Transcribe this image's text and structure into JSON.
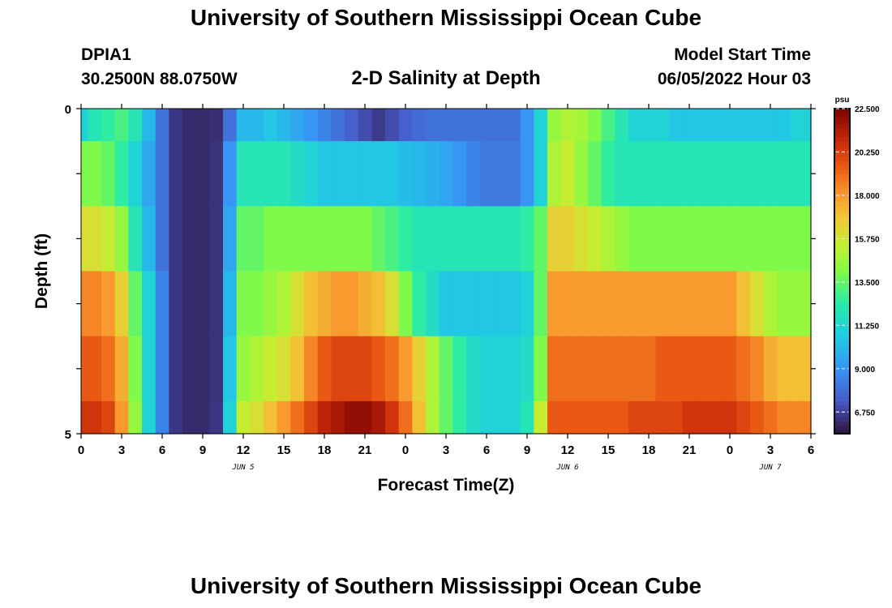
{
  "header": {
    "title": "University of Southern Mississippi Ocean Cube",
    "station_id": "DPIA1",
    "coords": "30.2500N  88.0750W",
    "subtitle": "2-D Salinity at Depth",
    "start_label": "Model Start Time",
    "start_value": "06/05/2022 Hour 03"
  },
  "footer": {
    "title": "University of Southern Mississippi Ocean Cube"
  },
  "chart_data": {
    "type": "heatmap",
    "title": "2-D Salinity at Depth",
    "xlabel": "Forecast Time(Z)",
    "ylabel": "Depth (ft)",
    "x_tick_labels": [
      "0",
      "3",
      "6",
      "9",
      "12",
      "15",
      "18",
      "21",
      "0",
      "3",
      "6",
      "9",
      "12",
      "15",
      "18",
      "21",
      "0",
      "3",
      "6"
    ],
    "date_labels": [
      {
        "label": "JUN 5",
        "hour": 12
      },
      {
        "label": "JUN 6",
        "hour": 36
      },
      {
        "label": "JUN 7",
        "hour": 51
      }
    ],
    "y_tick_labels": [
      "0",
      "5"
    ],
    "xlim": [
      0,
      54
    ],
    "ylim": [
      0,
      5
    ],
    "depth_bands_ft": [
      0.5,
      1.5,
      2.5,
      3.5,
      4.5,
      5.0
    ],
    "colorbar": {
      "unit": "psu",
      "min": 5.625,
      "max": 22.5,
      "tick_labels": [
        "22.500",
        "20.250",
        "18.000",
        "15.750",
        "13.500",
        "11.250",
        "9.000",
        "6.750"
      ],
      "tick_values": [
        22.5,
        20.25,
        18.0,
        15.75,
        13.5,
        11.25,
        9.0,
        6.75
      ]
    },
    "hours": [
      0,
      1,
      2,
      3,
      4,
      5,
      6,
      7,
      8,
      9,
      10,
      11,
      12,
      13,
      14,
      15,
      16,
      17,
      18,
      19,
      20,
      21,
      22,
      23,
      24,
      25,
      26,
      27,
      28,
      29,
      30,
      31,
      32,
      33,
      34,
      35,
      36,
      37,
      38,
      39,
      40,
      41,
      42,
      43,
      44,
      45,
      46,
      47,
      48,
      49,
      50,
      51,
      52,
      53,
      54
    ],
    "salinity_by_band": [
      {
        "band": "0",
        "values": [
          11,
          12,
          12.5,
          13,
          12,
          10,
          8,
          6.5,
          6.2,
          6.2,
          6.3,
          8,
          10,
          10,
          10.5,
          10,
          9.5,
          9,
          8.5,
          8,
          7.5,
          7,
          6.6,
          7,
          7.5,
          7.8,
          8,
          8,
          8,
          8,
          8,
          8,
          8,
          9,
          11,
          14.5,
          15,
          14.8,
          14,
          13,
          12,
          11,
          11,
          11,
          10.5,
          10.5,
          10.5,
          10.5,
          10.5,
          10.5,
          10.5,
          10.5,
          10.5,
          11,
          11
        ]
      },
      {
        "band": "0.5",
        "values": [
          14,
          14,
          13.5,
          12.5,
          11,
          9.5,
          8,
          6.5,
          6.2,
          6.2,
          6.4,
          9,
          12,
          12,
          12,
          12,
          11.5,
          11,
          10.5,
          10.5,
          10.5,
          10.5,
          10.5,
          10.5,
          10.2,
          10,
          9.8,
          9.5,
          9,
          8.5,
          8.2,
          8.2,
          8.2,
          9,
          11,
          15,
          15.5,
          14.5,
          13.5,
          12.5,
          12,
          12,
          12,
          12,
          12,
          12,
          12,
          12,
          12,
          12,
          12,
          12,
          12,
          12,
          12
        ]
      },
      {
        "band": "1.5",
        "values": [
          16,
          16,
          15.5,
          14.5,
          12,
          10,
          8,
          6.5,
          6.2,
          6.2,
          6.4,
          9.5,
          13.5,
          13.5,
          14,
          14,
          14,
          14,
          14,
          14,
          14,
          14,
          13.5,
          13,
          12.5,
          12,
          12,
          12,
          12,
          12,
          12,
          12,
          12,
          12.5,
          13.5,
          16.5,
          16.5,
          16,
          15.5,
          15,
          14.5,
          14,
          14,
          14,
          14,
          14,
          14,
          14,
          14,
          14,
          14,
          14,
          14,
          14,
          14
        ]
      },
      {
        "band": "2.5",
        "values": [
          18.5,
          18.5,
          18,
          16.5,
          13.5,
          11,
          8.5,
          6.5,
          6.2,
          6.2,
          6.4,
          10,
          14,
          14,
          14.5,
          15,
          16,
          17,
          17.5,
          18,
          18,
          17.5,
          17,
          16,
          14,
          12.5,
          11.5,
          10.5,
          10.5,
          10.5,
          10.5,
          10.5,
          10.5,
          11,
          13.5,
          18,
          18,
          18,
          18,
          18,
          18,
          18,
          18,
          18,
          18,
          18,
          18,
          18,
          18,
          17,
          16,
          15,
          14.5,
          14.5,
          14.5
        ]
      },
      {
        "band": "3.5",
        "values": [
          19.5,
          19.5,
          19,
          17.5,
          14,
          11,
          8.5,
          6.5,
          6.2,
          6.2,
          6.4,
          10.5,
          14.5,
          15,
          15.5,
          16,
          17,
          18.5,
          19.5,
          20,
          20,
          20,
          19.5,
          19,
          18,
          16.5,
          15,
          13.5,
          12.5,
          11.5,
          11,
          11,
          11,
          11.5,
          14,
          19,
          19,
          19,
          19,
          19,
          19,
          19,
          19,
          19.5,
          19.5,
          19.5,
          19.5,
          19.5,
          19.5,
          19,
          18.5,
          17.5,
          17,
          17,
          17
        ]
      },
      {
        "band": "4.5",
        "values": [
          20.5,
          20.5,
          20,
          18,
          14.5,
          11,
          8.5,
          6.5,
          6.2,
          6.2,
          6.5,
          11,
          15.5,
          16,
          17,
          18,
          19,
          20,
          21,
          21.5,
          22,
          22,
          21.5,
          20.5,
          19,
          17,
          15,
          13.5,
          12.5,
          11.5,
          11,
          11,
          11,
          12,
          15.5,
          19.5,
          19.5,
          19.5,
          19.5,
          19.5,
          19.5,
          20,
          20,
          20,
          20,
          20.5,
          20.5,
          20.5,
          20.5,
          20,
          19.5,
          19,
          18.5,
          18.5,
          18.5
        ]
      }
    ]
  }
}
